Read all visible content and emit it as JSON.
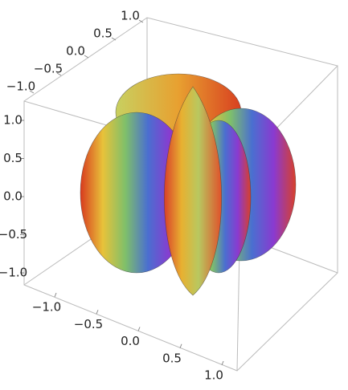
{
  "chart_data": {
    "type": "surface3d",
    "xlim": [
      -1,
      1
    ],
    "xticks": [
      {
        "value": -1,
        "label": "−1.0"
      },
      {
        "value": -0.5,
        "label": "−0.5"
      },
      {
        "value": 0,
        "label": "0.0"
      },
      {
        "value": 0.5,
        "label": "0.5"
      },
      {
        "value": 1,
        "label": "1.0"
      }
    ],
    "ylim": [
      -1,
      1
    ],
    "yticks": [
      {
        "value": -1,
        "label": "−1.0"
      },
      {
        "value": -0.5,
        "label": "−0.5"
      },
      {
        "value": 0,
        "label": "0.0"
      },
      {
        "value": 0.5,
        "label": "0.5"
      },
      {
        "value": 1,
        "label": "1.0"
      }
    ],
    "zlim": [
      -1,
      1
    ],
    "zticks": [
      {
        "value": -1,
        "label": "−1.0"
      },
      {
        "value": -0.5,
        "label": "−0.5"
      },
      {
        "value": 0,
        "label": "0.0"
      },
      {
        "value": 0.5,
        "label": "0.5"
      },
      {
        "value": 1,
        "label": "1.0"
      }
    ]
  }
}
